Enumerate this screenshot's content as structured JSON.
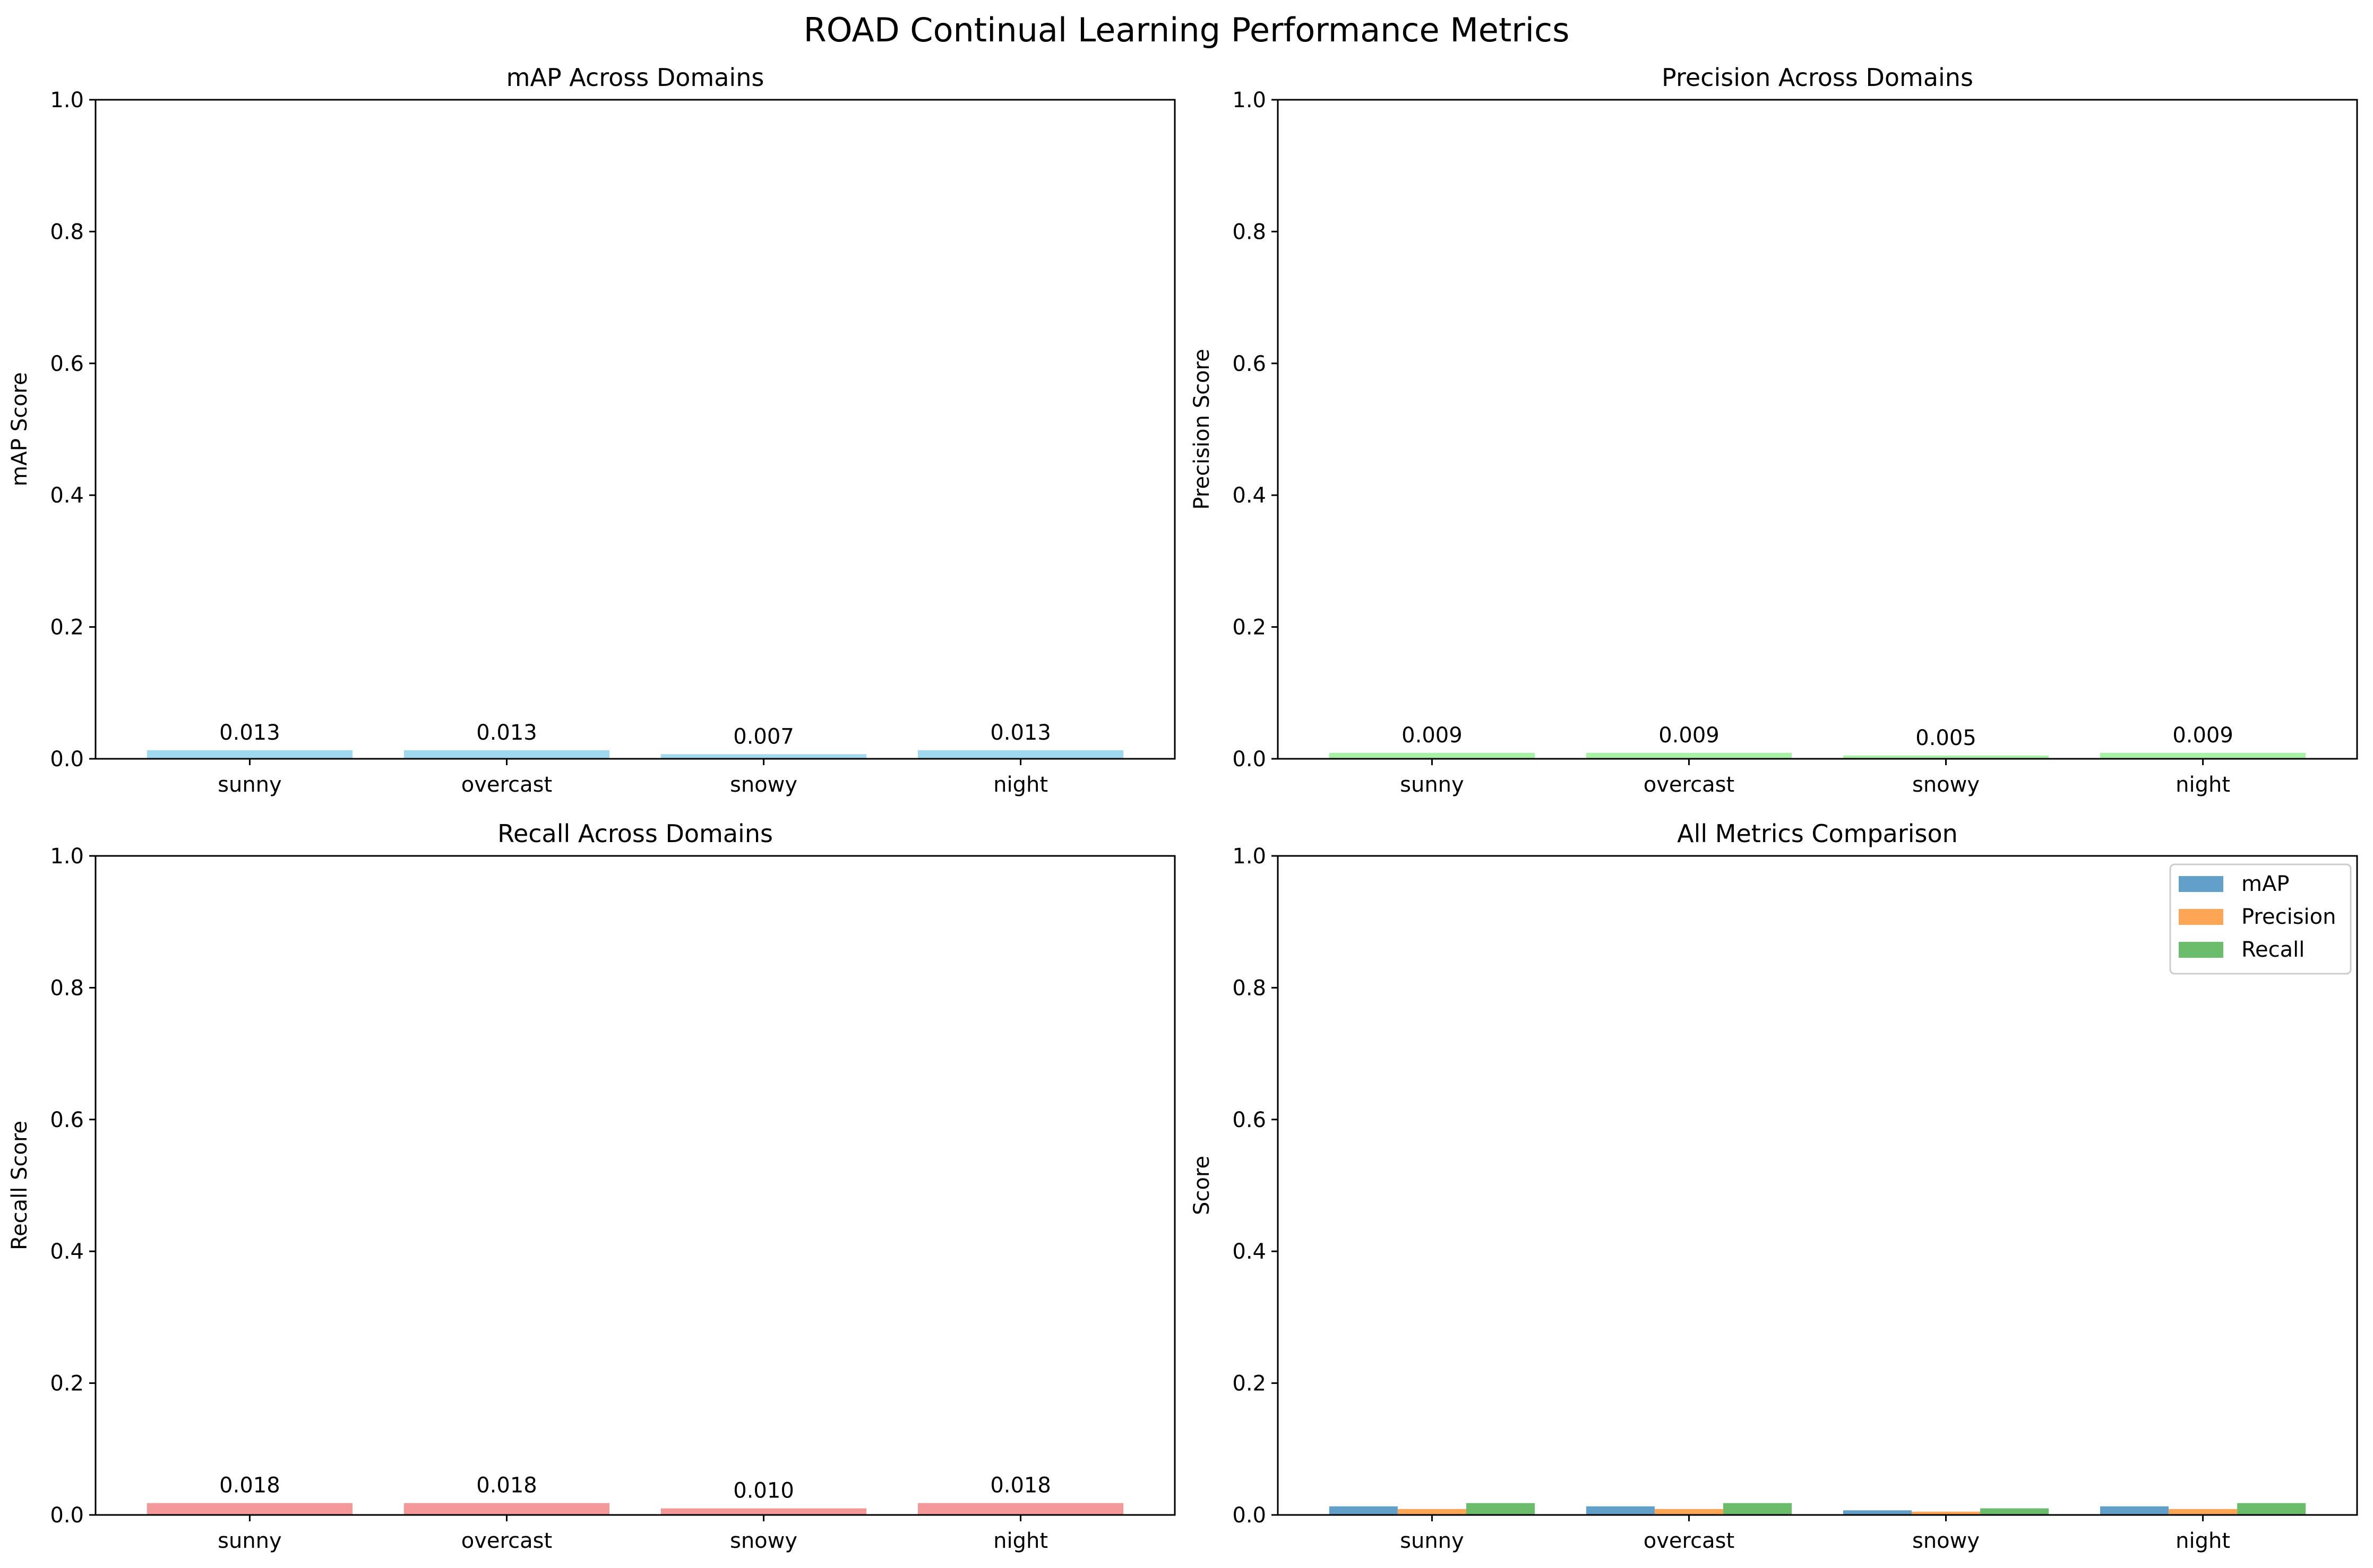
{
  "figure_title": "ROAD Continual Learning Performance Metrics",
  "chart_data": [
    {
      "type": "bar",
      "title": "mAP Across Domains",
      "xlabel": "",
      "ylabel": "mAP Score",
      "categories": [
        "sunny",
        "overcast",
        "snowy",
        "night"
      ],
      "series": [
        {
          "values": [
            0.013,
            0.013,
            0.007,
            0.013
          ]
        }
      ],
      "value_labels": [
        "0.013",
        "0.013",
        "0.007",
        "0.013"
      ],
      "ylim": [
        0,
        1.0
      ],
      "yticks": [
        "0.0",
        "0.2",
        "0.4",
        "0.6",
        "0.8",
        "1.0"
      ],
      "colors": [
        "#87ceeb"
      ],
      "grid": false
    },
    {
      "type": "bar",
      "title": "Precision Across Domains",
      "xlabel": "",
      "ylabel": "Precision Score",
      "categories": [
        "sunny",
        "overcast",
        "snowy",
        "night"
      ],
      "series": [
        {
          "values": [
            0.009,
            0.009,
            0.005,
            0.009
          ]
        }
      ],
      "value_labels": [
        "0.009",
        "0.009",
        "0.005",
        "0.009"
      ],
      "ylim": [
        0,
        1.0
      ],
      "yticks": [
        "0.0",
        "0.2",
        "0.4",
        "0.6",
        "0.8",
        "1.0"
      ],
      "colors": [
        "#90ee90"
      ],
      "grid": false
    },
    {
      "type": "bar",
      "title": "Recall Across Domains",
      "xlabel": "",
      "ylabel": "Recall Score",
      "categories": [
        "sunny",
        "overcast",
        "snowy",
        "night"
      ],
      "series": [
        {
          "values": [
            0.018,
            0.018,
            0.01,
            0.018
          ]
        }
      ],
      "value_labels": [
        "0.018",
        "0.018",
        "0.010",
        "0.018"
      ],
      "ylim": [
        0,
        1.0
      ],
      "yticks": [
        "0.0",
        "0.2",
        "0.4",
        "0.6",
        "0.8",
        "1.0"
      ],
      "colors": [
        "#f08080"
      ],
      "grid": false
    },
    {
      "type": "bar",
      "title": "All Metrics Comparison",
      "xlabel": "",
      "ylabel": "Score",
      "categories": [
        "sunny",
        "overcast",
        "snowy",
        "night"
      ],
      "series": [
        {
          "name": "mAP",
          "values": [
            0.013,
            0.013,
            0.007,
            0.013
          ]
        },
        {
          "name": "Precision",
          "values": [
            0.009,
            0.009,
            0.005,
            0.009
          ]
        },
        {
          "name": "Recall",
          "values": [
            0.018,
            0.018,
            0.01,
            0.018
          ]
        }
      ],
      "ylim": [
        0,
        1.0
      ],
      "yticks": [
        "0.0",
        "0.2",
        "0.4",
        "0.6",
        "0.8",
        "1.0"
      ],
      "colors": [
        "#1f77b4",
        "#ff7f0e",
        "#2ca02c"
      ],
      "legend": "top-right",
      "grid": false
    }
  ]
}
